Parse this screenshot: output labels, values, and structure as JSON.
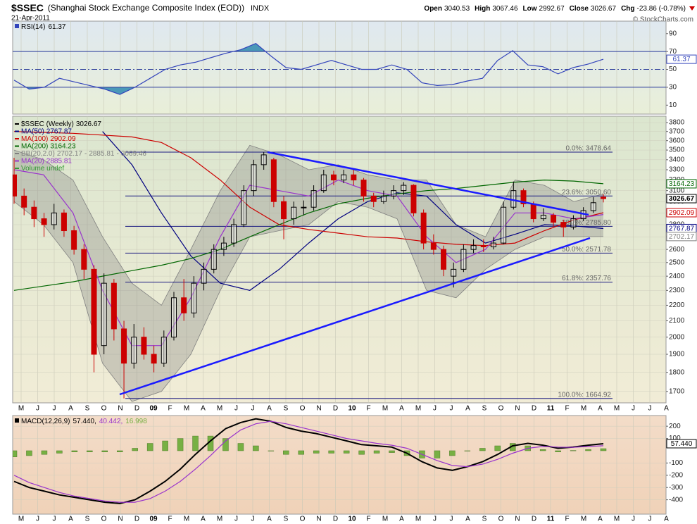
{
  "header": {
    "symbol": "$SSEC",
    "name": "(Shanghai Stock Exchange Composite Index (EOD))",
    "exchange": "INDX",
    "date": "21-Apr-2011",
    "copyright": "© StockCharts.com",
    "quote": [
      {
        "label": "Open",
        "value": "3040.53"
      },
      {
        "label": "High",
        "value": "3067.46"
      },
      {
        "label": "Low",
        "value": "2992.67"
      },
      {
        "label": "Close",
        "value": "3026.67"
      },
      {
        "label": "Chg",
        "value": "-23.86 (-0.78%)"
      }
    ]
  },
  "x_labels": [
    "M",
    "J",
    "J",
    "A",
    "S",
    "O",
    "N",
    "D",
    "09",
    "F",
    "M",
    "A",
    "M",
    "J",
    "J",
    "A",
    "S",
    "O",
    "N",
    "D",
    "10",
    "F",
    "M",
    "A",
    "M",
    "J",
    "J",
    "A",
    "S",
    "O",
    "N",
    "D",
    "11",
    "F",
    "M",
    "A",
    "M",
    "J",
    "J",
    "A"
  ],
  "chart_data": [
    {
      "type": "line",
      "title": "RSI(14)",
      "ylim": [
        0,
        104
      ],
      "yticks": [
        90,
        70,
        50,
        30,
        10
      ],
      "overbought": 70,
      "midline": 50,
      "oversold": 30,
      "fill_color": "#4a98b8",
      "level_color": "#2a3a9a",
      "series": [
        {
          "color": "#3344bb",
          "box": true,
          "values": [
            38,
            28,
            30,
            40,
            36,
            32,
            28,
            22,
            30,
            40,
            50,
            55,
            58,
            63,
            68,
            72,
            79,
            65,
            52,
            50,
            55,
            60,
            55,
            50,
            50,
            55,
            50,
            35,
            32,
            33,
            37,
            40,
            60,
            71,
            55,
            53,
            45,
            52,
            56,
            61.37
          ]
        }
      ]
    },
    {
      "type": "candlestick",
      "name": "$SSEC (Weekly)",
      "log_scale": true,
      "ylim": [
        1643,
        3873
      ],
      "yticks": [
        1700,
        1800,
        1900,
        2000,
        2100,
        2200,
        2300,
        2400,
        2500,
        2600,
        2700,
        2800,
        2900,
        3000,
        3100,
        3200,
        3300,
        3400,
        3500,
        3600,
        3700,
        3800
      ],
      "grid": true,
      "up_color": "#000000",
      "down_color": "#cc0000",
      "open": [
        3250,
        3050,
        2950,
        2850,
        2800,
        2900,
        2750,
        2600,
        2450,
        1950,
        2350,
        2050,
        1850,
        2000,
        1900,
        1850,
        2000,
        2250,
        2150,
        2350,
        2450,
        2600,
        2650,
        2800,
        3100,
        3350,
        3400,
        3000,
        2850,
        2950,
        2950,
        3100,
        3250,
        3200,
        3250,
        3200,
        3050,
        3000,
        3050,
        3100,
        3150,
        2900,
        2650,
        2600,
        2400,
        2450,
        2600,
        2630,
        2620,
        2650,
        2950,
        3100,
        2980,
        2850,
        2880,
        2820,
        2780,
        2850,
        2920,
        3040.53
      ],
      "high": [
        3420,
        3120,
        3010,
        2900,
        2980,
        2930,
        2790,
        2640,
        2480,
        2420,
        2380,
        2100,
        2080,
        2060,
        1950,
        2040,
        2290,
        2380,
        2400,
        2500,
        2640,
        2700,
        2850,
        3150,
        3400,
        3478,
        3420,
        3050,
        3000,
        3010,
        3150,
        3300,
        3290,
        3300,
        3300,
        3220,
        3080,
        3100,
        3150,
        3180,
        3160,
        2930,
        2720,
        2630,
        2500,
        2640,
        2680,
        2680,
        2700,
        3000,
        3186,
        3120,
        3000,
        2940,
        2900,
        2840,
        2880,
        2950,
        3040,
        3067.46
      ],
      "low": [
        2980,
        2880,
        2780,
        2700,
        2760,
        2700,
        2560,
        2380,
        1800,
        1900,
        1980,
        1665,
        1820,
        1870,
        1800,
        1830,
        1980,
        2100,
        2120,
        2300,
        2420,
        2550,
        2620,
        2780,
        3050,
        3300,
        2950,
        2680,
        2800,
        2880,
        2920,
        3080,
        3150,
        3170,
        3150,
        3000,
        2950,
        2980,
        3020,
        3060,
        2870,
        2600,
        2560,
        2400,
        2320,
        2430,
        2570,
        2580,
        2600,
        2640,
        2930,
        2950,
        2820,
        2830,
        2780,
        2700,
        2760,
        2830,
        2900,
        2992.67
      ],
      "close": [
        3050,
        2950,
        2850,
        2800,
        2900,
        2750,
        2600,
        2450,
        1900,
        2350,
        2050,
        1850,
        2000,
        1900,
        1850,
        2000,
        2250,
        2150,
        2350,
        2450,
        2600,
        2650,
        2800,
        3100,
        3350,
        3450,
        3000,
        2850,
        2950,
        2950,
        3100,
        3250,
        3200,
        3250,
        3200,
        3050,
        3000,
        3050,
        3100,
        3150,
        2900,
        2650,
        2600,
        2450,
        2450,
        2600,
        2630,
        2620,
        2650,
        2950,
        3100,
        2980,
        2850,
        2880,
        2820,
        2780,
        2850,
        2920,
        2990,
        3026.67
      ],
      "series": [
        {
          "name": "MA(50)",
          "color": "#000080",
          "box": true,
          "values": [
            null,
            null,
            null,
            3700,
            3350,
            2900,
            2550,
            2350,
            2300,
            2450,
            2650,
            2850,
            3000,
            3080,
            3050,
            2800,
            2650,
            2720,
            2800,
            2790,
            2767.87
          ]
        },
        {
          "name": "MA(100)",
          "color": "#cc0000",
          "box": true,
          "values": [
            3700,
            3690,
            3680,
            3660,
            3640,
            3580,
            3420,
            3200,
            2950,
            2800,
            2760,
            2730,
            2700,
            2690,
            2660,
            2640,
            2630,
            2650,
            2750,
            2840,
            2902.09
          ]
        },
        {
          "name": "MA(200)",
          "color": "#006600",
          "box": true,
          "values": [
            2300,
            2330,
            2360,
            2400,
            2440,
            2480,
            2530,
            2600,
            2700,
            2800,
            2900,
            2980,
            3030,
            3070,
            3100,
            3120,
            3150,
            3180,
            3200,
            3190,
            3164.23
          ]
        },
        {
          "name": "MA(20)",
          "color": "#9933cc",
          "values": [
            3300,
            3250,
            2900,
            2300,
            1950,
            1950,
            2250,
            2700,
            3150,
            3100,
            3050,
            3200,
            3100,
            3050,
            2700,
            2500,
            2600,
            2900,
            2900,
            2850,
            2885.81
          ]
        }
      ],
      "bands": {
        "name": "BB(20,2.0)",
        "color": "#808080",
        "separator": "-",
        "upper": [
          3500,
          3400,
          3200,
          2700,
          2350,
          2200,
          2600,
          3100,
          3550,
          3450,
          3300,
          3350,
          3250,
          3200,
          3200,
          2800,
          2700,
          3200,
          3150,
          3000,
          3069.46
        ],
        "lower": [
          3000,
          2800,
          2500,
          1850,
          1650,
          1700,
          1900,
          2300,
          2700,
          2750,
          2800,
          3000,
          2950,
          2850,
          2300,
          2250,
          2450,
          2600,
          2700,
          2700,
          2702.17
        ]
      },
      "volume": {
        "name": "Volume undef",
        "color": "#339933"
      },
      "fib_color": "#1a1a80",
      "fib_levels": [
        {
          "value": 3478.64,
          "label": "0.0%: 3478.64"
        },
        {
          "value": 3050.6,
          "label": "23.6%: 3050.60"
        },
        {
          "value": 2785.8,
          "label": "38.2%: 2785.80"
        },
        {
          "value": 2571.78,
          "label": "50.0%: 2571.78"
        },
        {
          "value": 2357.76,
          "label": "61.8%: 2357.76"
        },
        {
          "value": 1664.92,
          "label": "100.0%: 1664.92"
        }
      ]
    },
    {
      "type": "line",
      "title": "MACD(12,26,9)",
      "ylim": [
        -517,
        287
      ],
      "yticks": [
        200,
        100,
        -100,
        -200,
        -300,
        -400
      ],
      "grid": true,
      "separator": ",",
      "series": [
        {
          "color": "#000000",
          "box": true,
          "last_label": "57.440",
          "values": [
            -250,
            -300,
            -330,
            -360,
            -380,
            -400,
            -420,
            -430,
            -400,
            -330,
            -250,
            -150,
            -30,
            80,
            180,
            230,
            260,
            240,
            190,
            160,
            140,
            110,
            80,
            50,
            40,
            30,
            -20,
            -90,
            -140,
            -160,
            -130,
            -90,
            -30,
            40,
            60,
            45,
            20,
            30,
            45,
            57.44
          ]
        },
        {
          "color": "#9933cc",
          "last_label": "40.442",
          "values": [
            -200,
            -260,
            -300,
            -340,
            -370,
            -390,
            -410,
            -420,
            -420,
            -390,
            -330,
            -250,
            -150,
            -40,
            80,
            170,
            220,
            240,
            220,
            190,
            160,
            130,
            100,
            80,
            60,
            45,
            20,
            -30,
            -80,
            -120,
            -130,
            -110,
            -70,
            -20,
            20,
            35,
            30,
            28,
            35,
            40.442
          ]
        },
        {
          "type": "bar",
          "color": "#77b043",
          "last_label": "16.998",
          "values": [
            -50,
            -40,
            -30,
            -20,
            -10,
            -10,
            -10,
            -10,
            20,
            60,
            80,
            100,
            120,
            120,
            100,
            60,
            40,
            0,
            -30,
            -30,
            -20,
            -20,
            -20,
            -30,
            -20,
            -15,
            -40,
            -60,
            -60,
            -40,
            0,
            20,
            40,
            60,
            40,
            10,
            -10,
            2,
            10,
            16.998
          ]
        }
      ]
    }
  ]
}
